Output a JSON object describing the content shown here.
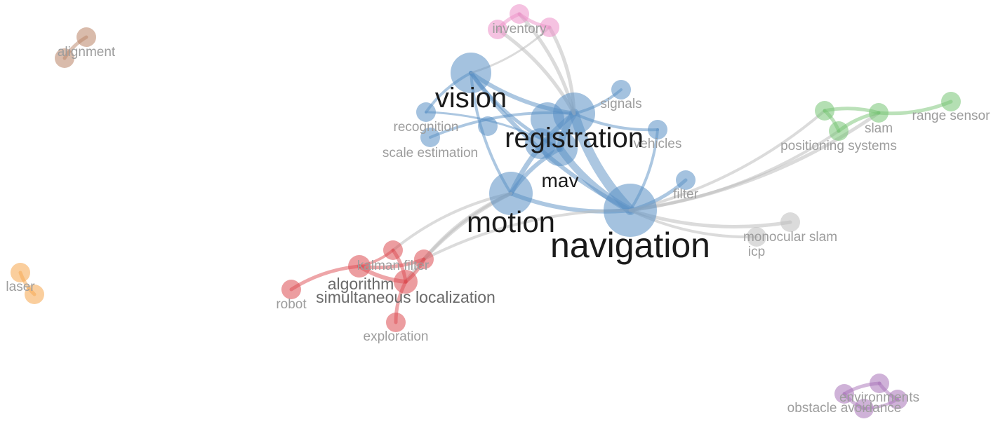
{
  "colors": {
    "blue": "#5a8fc4",
    "red": "#dd4c52",
    "green": "#77c474",
    "pink": "#ec8fc8",
    "orange": "#f5a54d",
    "brown": "#b98366",
    "purple": "#a772b8",
    "gray": "#bdbdbd"
  },
  "nodes": [
    {
      "id": "navigation",
      "label": "navigation",
      "cluster": "blue",
      "weight": 10
    },
    {
      "id": "registration",
      "label": "registration",
      "cluster": "blue",
      "weight": 8
    },
    {
      "id": "motion",
      "label": "motion",
      "cluster": "blue",
      "weight": 7
    },
    {
      "id": "vision",
      "label": "vision",
      "cluster": "blue",
      "weight": 6
    },
    {
      "id": "mav",
      "label": "mav",
      "cluster": "blue",
      "weight": 5
    },
    {
      "id": "signals",
      "label": "signals",
      "cluster": "blue",
      "weight": 2
    },
    {
      "id": "vehicles",
      "label": "vehicles",
      "cluster": "blue",
      "weight": 2
    },
    {
      "id": "filter",
      "label": "filter",
      "cluster": "blue",
      "weight": 2
    },
    {
      "id": "recognition",
      "label": "recognition",
      "cluster": "blue",
      "weight": 2
    },
    {
      "id": "scale-estimation",
      "label": "scale estimation",
      "cluster": "blue",
      "weight": 2
    },
    {
      "id": "inventory",
      "label": "inventory",
      "cluster": "pink",
      "weight": 2
    },
    {
      "id": "slam",
      "label": "slam",
      "cluster": "green",
      "weight": 2
    },
    {
      "id": "range-sensor",
      "label": "range sensor",
      "cluster": "green",
      "weight": 2
    },
    {
      "id": "positioning-systems",
      "label": "positioning systems",
      "cluster": "green",
      "weight": 2
    },
    {
      "id": "monocular-slam",
      "label": "monocular slam",
      "cluster": "gray",
      "weight": 2
    },
    {
      "id": "icp",
      "label": "icp",
      "cluster": "gray",
      "weight": 2
    },
    {
      "id": "kalman-filter",
      "label": "kalman filter",
      "cluster": "red",
      "weight": 2
    },
    {
      "id": "algorithm",
      "label": "algorithm",
      "cluster": "red",
      "weight": 3
    },
    {
      "id": "simultaneous-localization",
      "label": "simultaneous localization",
      "cluster": "red",
      "weight": 3
    },
    {
      "id": "robot",
      "label": "robot",
      "cluster": "red",
      "weight": 2
    },
    {
      "id": "exploration",
      "label": "exploration",
      "cluster": "red",
      "weight": 2
    },
    {
      "id": "alignment",
      "label": "alignment",
      "cluster": "brown",
      "weight": 2
    },
    {
      "id": "laser",
      "label": "laser",
      "cluster": "orange",
      "weight": 2
    },
    {
      "id": "environments",
      "label": "environments",
      "cluster": "purple",
      "weight": 2
    },
    {
      "id": "obstacle-avoidance",
      "label": "obstacle avoidance",
      "cluster": "purple",
      "weight": 2
    }
  ]
}
